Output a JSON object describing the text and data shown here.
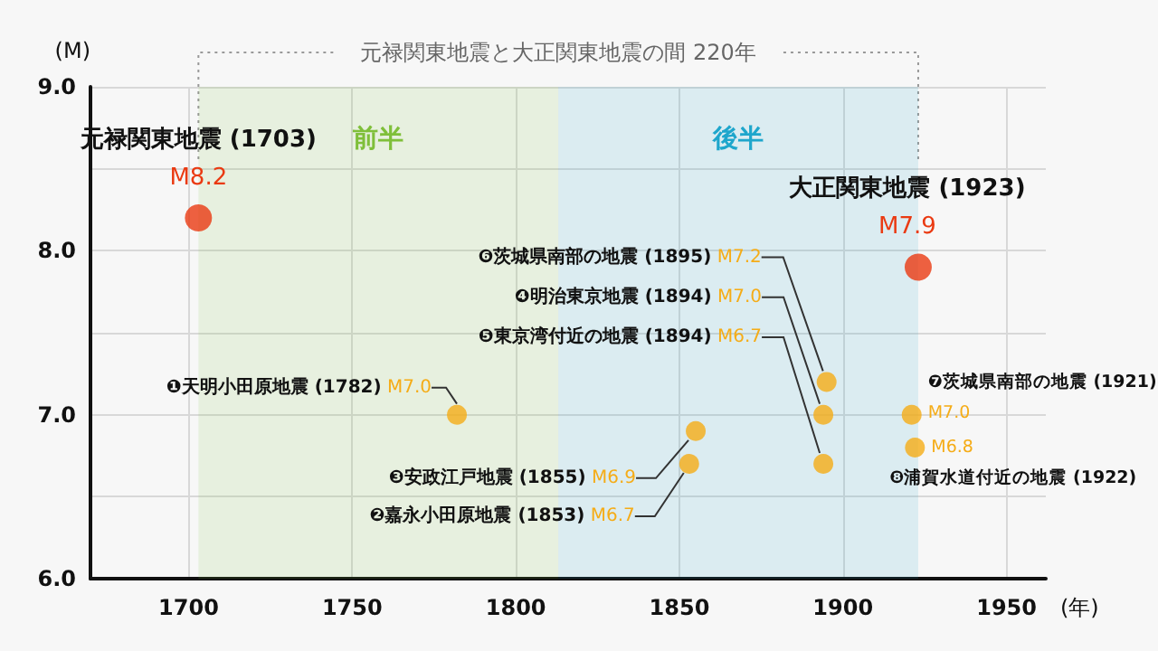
{
  "chart_data": {
    "type": "scatter",
    "xlabel": "(年)",
    "ylabel": "(M)",
    "xlim": [
      1670,
      1962
    ],
    "xticks": [
      1700,
      1750,
      1800,
      1850,
      1900,
      1950
    ],
    "ylim": [
      6,
      9
    ],
    "yticks": [
      {
        "value": 6,
        "label": "6.0"
      },
      {
        "value": 6.5,
        "label": null
      },
      {
        "value": 7,
        "label": "7.0"
      },
      {
        "value": 7.5,
        "label": null
      },
      {
        "value": 8,
        "label": "8.0"
      },
      {
        "value": 8.5,
        "label": null
      },
      {
        "value": 9,
        "label": "9.0"
      }
    ],
    "grid": true,
    "marker": "circle",
    "series": [
      {
        "color": "#ea3a12",
        "x": [
          1703,
          1923
        ],
        "values": [
          8.2,
          7.9
        ],
        "value_labels": [
          "M8.2",
          "M7.9"
        ]
      },
      {
        "color": "#f5ac17",
        "x": [
          1782,
          1855,
          1853,
          1895,
          1894,
          1894,
          1921,
          1922
        ],
        "values": [
          7.0,
          6.9,
          6.7,
          7.2,
          7.0,
          6.7,
          7.0,
          6.8
        ],
        "value_labels": [
          "M7.0",
          "M6.9",
          "M6.7",
          "M7.2",
          "M7.0",
          "M6.7",
          "M7.0",
          "M6.8"
        ]
      }
    ],
    "bands": [
      {
        "axis": "x",
        "from": 1703,
        "to": 1813,
        "label": "前半",
        "color": "#7fbf3a"
      },
      {
        "axis": "x",
        "from": 1813,
        "to": 1923,
        "label": "後半",
        "color": "#1ea6cc"
      }
    ],
    "annotations": [
      {
        "text": "元禄関東地震と大正関東地震の間 220年",
        "x": 1813,
        "y": 9
      },
      "元禄関東地震 (1703)",
      "大正関東地震 (1923)",
      "❶天明小田原地震 (1782)",
      "❸安政江戸地震 (1855)",
      "❷嘉永小田原地震 (1853)",
      "❻茨城県南部の地震 (1895)",
      "❹明治東京地震 (1894)",
      "❺東京湾付近の地震 (1894)",
      "❼茨城県南部の地震 (1921)",
      "❽浦賀水道付近の地震 (1922)"
    ]
  }
}
